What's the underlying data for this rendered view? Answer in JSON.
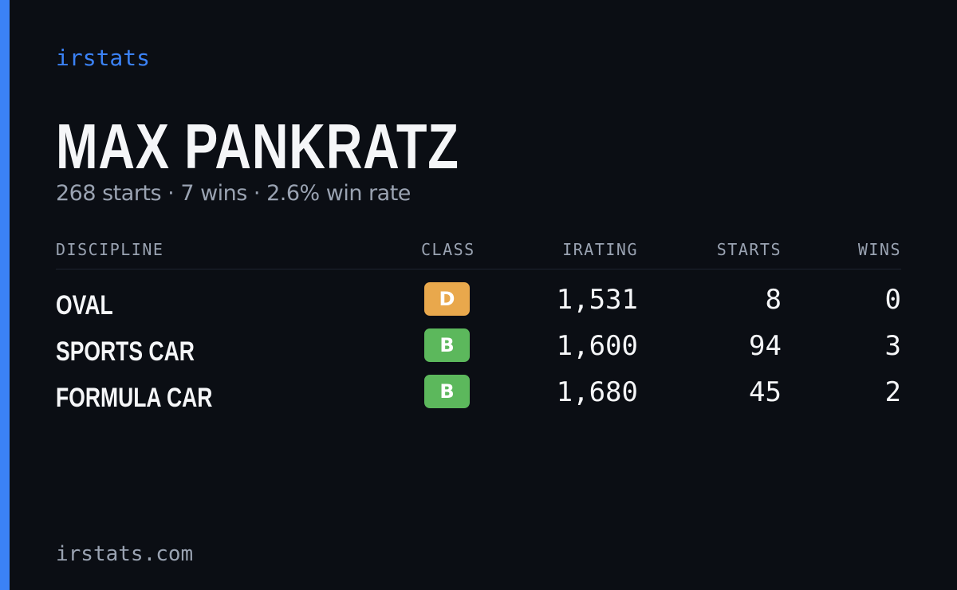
{
  "brand": "irstats",
  "name": "MAX PANKRATZ",
  "summary": "268 starts · 7 wins · 2.6% win rate",
  "table": {
    "headers": [
      "DISCIPLINE",
      "CLASS",
      "IRATING",
      "STARTS",
      "WINS"
    ],
    "rows": [
      {
        "discipline": "OVAL",
        "class": "D",
        "class_color": "#e9a84c",
        "irating": "1,531",
        "starts": 8,
        "wins": 0
      },
      {
        "discipline": "SPORTS CAR",
        "class": "B",
        "class_color": "#5cb85c",
        "irating": "1,600",
        "starts": 94,
        "wins": 3
      },
      {
        "discipline": "FORMULA CAR",
        "class": "B",
        "class_color": "#5cb85c",
        "irating": "1,680",
        "starts": 45,
        "wins": 2
      }
    ]
  },
  "footer": "irstats.com"
}
